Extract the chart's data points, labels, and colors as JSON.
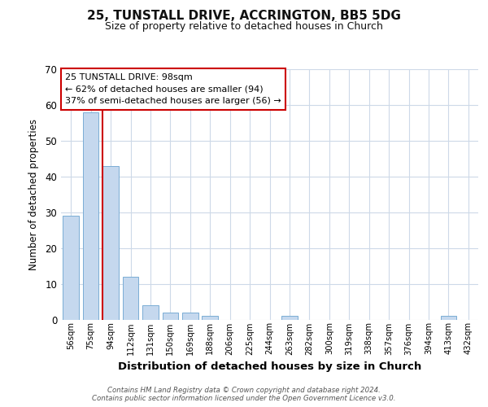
{
  "title1": "25, TUNSTALL DRIVE, ACCRINGTON, BB5 5DG",
  "title2": "Size of property relative to detached houses in Church",
  "xlabel": "Distribution of detached houses by size in Church",
  "ylabel": "Number of detached properties",
  "categories": [
    "56sqm",
    "75sqm",
    "94sqm",
    "112sqm",
    "131sqm",
    "150sqm",
    "169sqm",
    "188sqm",
    "206sqm",
    "225sqm",
    "244sqm",
    "263sqm",
    "282sqm",
    "300sqm",
    "319sqm",
    "338sqm",
    "357sqm",
    "376sqm",
    "394sqm",
    "413sqm",
    "432sqm"
  ],
  "values": [
    29,
    58,
    43,
    12,
    4,
    2,
    2,
    1,
    0,
    0,
    0,
    1,
    0,
    0,
    0,
    0,
    0,
    0,
    0,
    1,
    0
  ],
  "bar_color": "#c5d8ee",
  "bar_edge_color": "#7aadd4",
  "red_line_index": 2,
  "ylim": [
    0,
    70
  ],
  "yticks": [
    0,
    10,
    20,
    30,
    40,
    50,
    60,
    70
  ],
  "annotation_line1": "25 TUNSTALL DRIVE: 98sqm",
  "annotation_line2": "← 62% of detached houses are smaller (94)",
  "annotation_line3": "37% of semi-detached houses are larger (56) →",
  "annotation_box_color": "#ffffff",
  "annotation_box_edge_color": "#cc0000",
  "footer_line1": "Contains HM Land Registry data © Crown copyright and database right 2024.",
  "footer_line2": "Contains public sector information licensed under the Open Government Licence v3.0.",
  "background_color": "#ffffff",
  "grid_color": "#cdd9e8"
}
